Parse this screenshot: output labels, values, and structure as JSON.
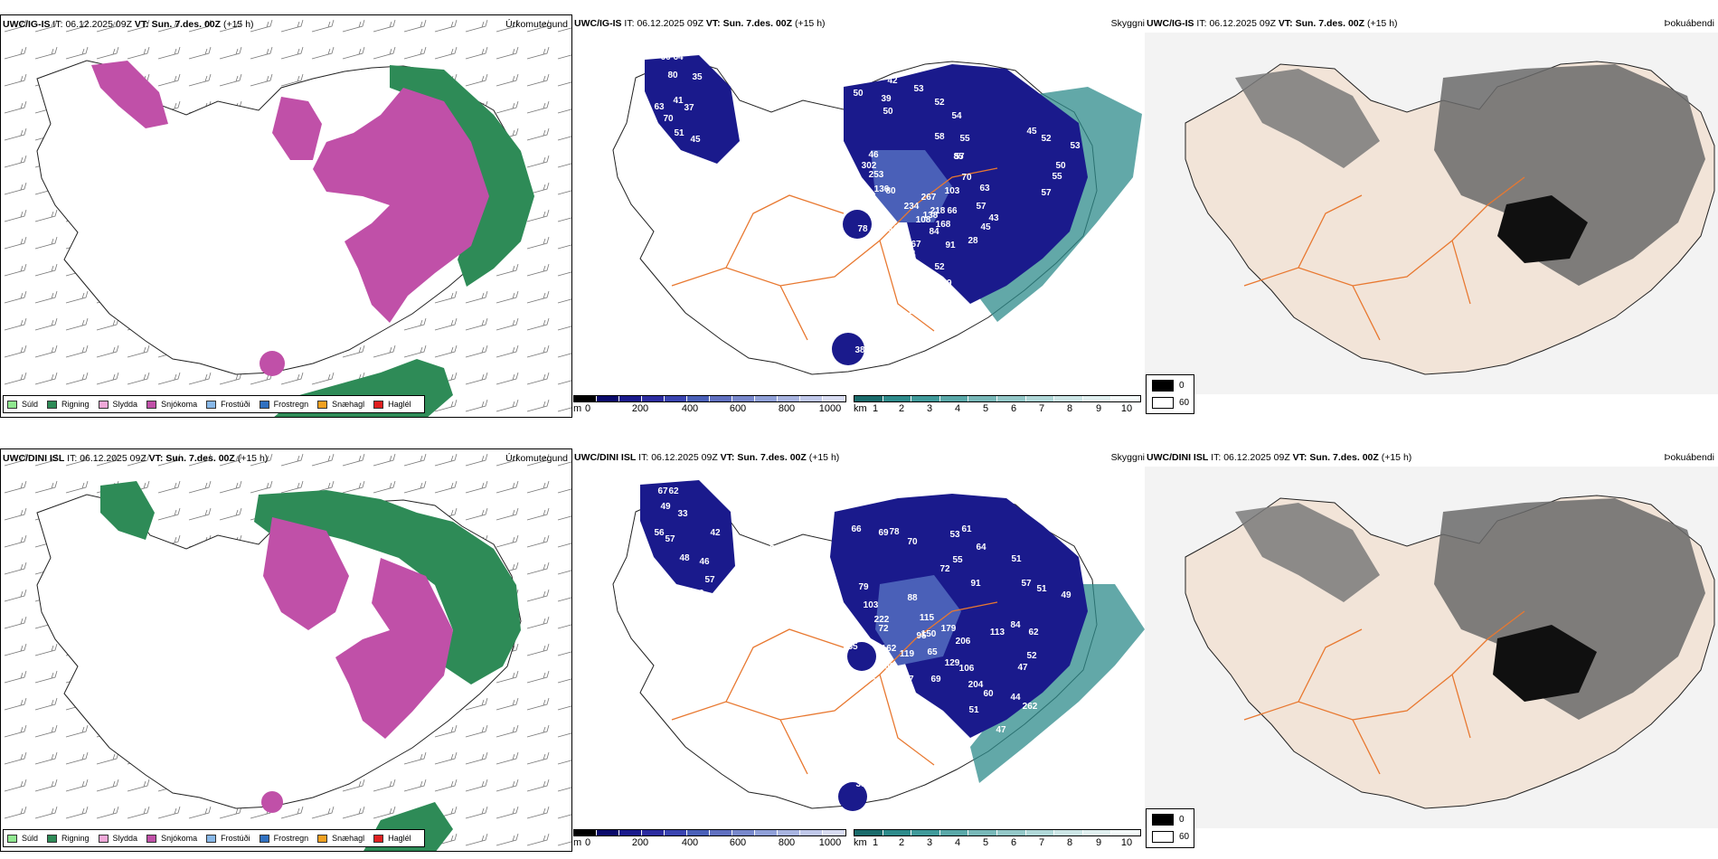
{
  "colors": {
    "drizzle": "#90e890",
    "rain": "#2e8b57",
    "sleet": "#f0a8d8",
    "snow": "#c050a8",
    "freezing_drizzle": "#88b8e8",
    "freezing_rain": "#3070c0",
    "snow_pellets": "#f0a020",
    "hail": "#e02020",
    "cloud_base_low": "#1a1a8c",
    "cloud_base_mid": "#4a60b8",
    "visibility_low": "#2e8b8b",
    "land": "#f2e4d8",
    "road": "#e87830",
    "fog": "#101010"
  },
  "rows": [
    {
      "model": "UWC/IG-IS",
      "it_label": "IT:",
      "it_value": "06.12.2025 09Z",
      "vt_label": "VT:",
      "vt_value": "Sun. 7.des. 00Z",
      "lead": "(+15 h)"
    },
    {
      "model": "UWC/DINI ISL",
      "it_label": "IT:",
      "it_value": "06.12.2025 09Z",
      "vt_label": "VT:",
      "vt_value": "Sun. 7.des. 00Z",
      "lead": "(+15 h)"
    }
  ],
  "panel_titles": {
    "precip": "Úrkomutegund",
    "cloud": "Skyggni",
    "fog": "Þokuábendi"
  },
  "precip_legend": [
    "Súld",
    "Rigning",
    "Slydda",
    "Snjókoma",
    "Frostúði",
    "Frostregn",
    "Snæhagl",
    "Haglél"
  ],
  "cloud_base_scale": {
    "unit": "m",
    "ticks": [
      "0",
      "200",
      "400",
      "600",
      "800",
      "1000"
    ]
  },
  "visibility_scale": {
    "unit": "km",
    "ticks": [
      "1",
      "2",
      "3",
      "4",
      "5",
      "6",
      "7",
      "8",
      "9",
      "10"
    ]
  },
  "fog_legend": [
    "0",
    "60"
  ],
  "cloud_labels": [
    [
      "66",
      "64",
      "80",
      "35",
      "41",
      "37",
      "63",
      "70",
      "51",
      "45",
      "62",
      "50",
      "39",
      "42",
      "50",
      "53",
      "52",
      "54",
      "55",
      "57",
      "58",
      "70",
      "45",
      "52",
      "50",
      "53",
      "55",
      "57",
      "302",
      "253",
      "136",
      "234",
      "267",
      "218",
      "108",
      "66",
      "103",
      "85",
      "63",
      "57",
      "45",
      "43",
      "46",
      "80",
      "78",
      "64",
      "67",
      "84",
      "168",
      "138",
      "91",
      "52",
      "49",
      "63",
      "74",
      "28",
      "19",
      "65",
      "38"
    ],
    [
      "67",
      "62",
      "49",
      "33",
      "42",
      "56",
      "57",
      "48",
      "46",
      "57",
      "60",
      "95",
      "66",
      "69",
      "78",
      "70",
      "53",
      "61",
      "64",
      "55",
      "51",
      "57",
      "51",
      "49",
      "72",
      "91",
      "79",
      "103",
      "222",
      "88",
      "115",
      "95",
      "179",
      "206",
      "113",
      "84",
      "62",
      "52",
      "47",
      "150",
      "65",
      "129",
      "106",
      "119",
      "162",
      "100",
      "67",
      "69",
      "204",
      "60",
      "51",
      "44",
      "262",
      "47",
      "72",
      "55",
      "32",
      "70",
      "33"
    ]
  ]
}
